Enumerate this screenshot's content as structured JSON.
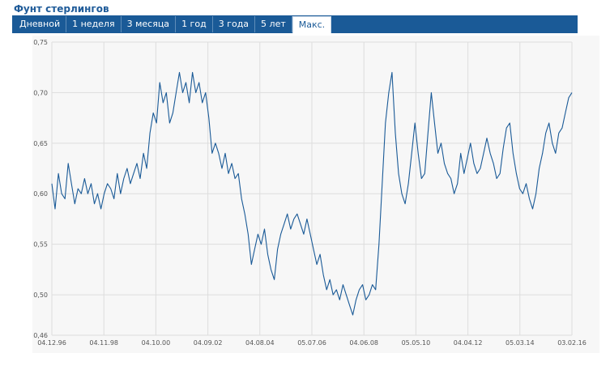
{
  "header": {
    "title": "Фунт стерлингов"
  },
  "tabs": [
    {
      "label": "Дневной",
      "active": false
    },
    {
      "label": "1 неделя",
      "active": false
    },
    {
      "label": "3 месяца",
      "active": false
    },
    {
      "label": "1 год",
      "active": false
    },
    {
      "label": "3 года",
      "active": false
    },
    {
      "label": "5 лет",
      "active": false
    },
    {
      "label": "Макс.",
      "active": true
    }
  ],
  "colors": {
    "accent": "#1a5a97",
    "line": "#1a5a97",
    "plot_bg": "#f7f7f7",
    "grid": "#dddddd"
  },
  "chart_data": {
    "type": "line",
    "title": "",
    "xlabel": "",
    "ylabel": "",
    "grid": true,
    "ylim": [
      0.46,
      0.75
    ],
    "y_ticks": [
      "0,46",
      "0,50",
      "0,55",
      "0,60",
      "0,65",
      "0,70",
      "0,75"
    ],
    "y_tick_values": [
      0.46,
      0.5,
      0.55,
      0.6,
      0.65,
      0.7,
      0.75
    ],
    "x_ticks": [
      "04.12.96",
      "04.11.98",
      "04.10.00",
      "04.09.02",
      "04.08.04",
      "05.07.06",
      "04.06.08",
      "05.05.10",
      "04.04.12",
      "05.03.14",
      "03.02.16"
    ],
    "series": [
      {
        "values": [
          0.61,
          0.585,
          0.62,
          0.6,
          0.595,
          0.63,
          0.61,
          0.59,
          0.605,
          0.6,
          0.615,
          0.6,
          0.61,
          0.59,
          0.6,
          0.585,
          0.6,
          0.61,
          0.605,
          0.595,
          0.62,
          0.6,
          0.615,
          0.625,
          0.61,
          0.62,
          0.63,
          0.615,
          0.64,
          0.625,
          0.66,
          0.68,
          0.67,
          0.71,
          0.69,
          0.7,
          0.67,
          0.68,
          0.7,
          0.72,
          0.7,
          0.71,
          0.69,
          0.72,
          0.7,
          0.71,
          0.69,
          0.7,
          0.675,
          0.64,
          0.65,
          0.64,
          0.625,
          0.64,
          0.62,
          0.63,
          0.615,
          0.62,
          0.595,
          0.58,
          0.56,
          0.53,
          0.545,
          0.56,
          0.55,
          0.565,
          0.54,
          0.525,
          0.515,
          0.545,
          0.56,
          0.57,
          0.58,
          0.565,
          0.575,
          0.58,
          0.57,
          0.56,
          0.575,
          0.56,
          0.545,
          0.53,
          0.54,
          0.52,
          0.505,
          0.515,
          0.5,
          0.505,
          0.495,
          0.51,
          0.5,
          0.49,
          0.48,
          0.495,
          0.505,
          0.51,
          0.495,
          0.5,
          0.51,
          0.505,
          0.55,
          0.61,
          0.67,
          0.7,
          0.72,
          0.66,
          0.62,
          0.6,
          0.59,
          0.61,
          0.64,
          0.67,
          0.64,
          0.615,
          0.62,
          0.66,
          0.7,
          0.67,
          0.64,
          0.65,
          0.63,
          0.62,
          0.615,
          0.6,
          0.61,
          0.64,
          0.62,
          0.635,
          0.65,
          0.63,
          0.62,
          0.625,
          0.64,
          0.655,
          0.64,
          0.63,
          0.615,
          0.62,
          0.645,
          0.665,
          0.67,
          0.64,
          0.62,
          0.605,
          0.6,
          0.61,
          0.595,
          0.585,
          0.6,
          0.625,
          0.64,
          0.66,
          0.67,
          0.65,
          0.64,
          0.66,
          0.665,
          0.68,
          0.695,
          0.7
        ]
      }
    ]
  }
}
